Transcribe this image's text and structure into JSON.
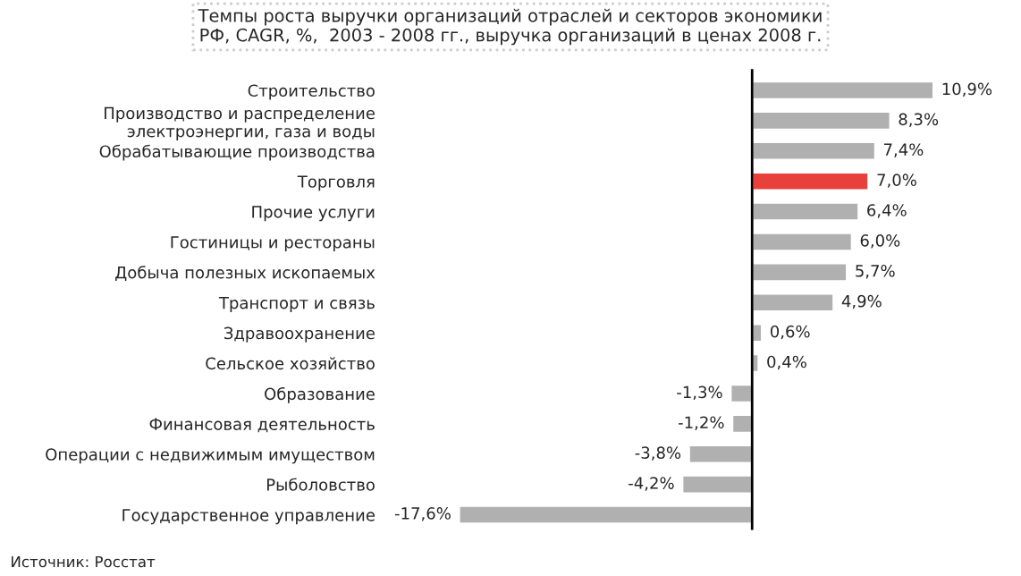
{
  "chart_data": {
    "type": "bar",
    "orientation": "horizontal",
    "title": "Темпы роста выручки организаций отраслей и секторов экономики\nРФ, CAGR, %,  2003 - 2008 гг., выручка организаций в ценах 2008 г.",
    "categories": [
      "Строительство",
      "Производство и распределение\nэлектроэнергии, газа и воды",
      "Обрабатывающие производства",
      "Торговля",
      "Прочие услуги",
      "Гостиницы и рестораны",
      "Добыча полезных ископаемых",
      "Транспорт и связь",
      "Здравоохранение",
      "Сельское хозяйство",
      "Образование",
      "Финансовая деятельность",
      "Операции с недвижимым имуществом",
      "Рыболовство",
      "Государственное управление"
    ],
    "values": [
      10.9,
      8.3,
      7.4,
      7.0,
      6.4,
      6.0,
      5.7,
      4.9,
      0.6,
      0.4,
      -1.3,
      -1.2,
      -3.8,
      -4.2,
      -17.6
    ],
    "colors": [
      "#b0b0b0",
      "#b0b0b0",
      "#b0b0b0",
      "#e8413c",
      "#b0b0b0",
      "#b0b0b0",
      "#b0b0b0",
      "#b0b0b0",
      "#b0b0b0",
      "#b0b0b0",
      "#b0b0b0",
      "#b0b0b0",
      "#b0b0b0",
      "#b0b0b0",
      "#b0b0b0"
    ],
    "value_labels": [
      "10,9%",
      "8,3%",
      "7,4%",
      "7,0%",
      "6,4%",
      "6,0%",
      "5,7%",
      "4,9%",
      "0,6%",
      "0,4%",
      "-1,3%",
      "-1,2%",
      "-3,8%",
      "-4,2%",
      "-17,6%"
    ],
    "annotations": [
      "Источник: Росстат"
    ],
    "grid": false,
    "legend": false
  }
}
